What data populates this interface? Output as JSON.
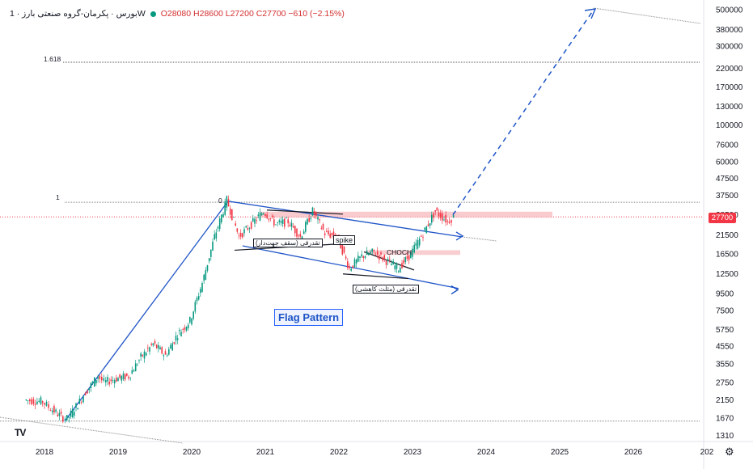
{
  "legend": {
    "symbol": "بورس · پکرمان-گروه صنعتی بارز · 1W",
    "open": "O28080",
    "high": "H28600",
    "low": "L27200",
    "close": "C27700",
    "change": "−610 (−2.15%)",
    "dot_color": "#089981"
  },
  "annotations": {
    "flag": "Flag Pattern",
    "spike": "spike",
    "choch": "CHOCH",
    "note_ascending": "تقدرقی (سقف جهت‌دار)",
    "note_descending": "تقدرقی (مثلث کاهشی)",
    "fib_1618": "1.618",
    "fib_1": "1",
    "fib_0": "0"
  },
  "price_tag": "27700",
  "logo": "TV",
  "settings_icon": "gear-icon",
  "colors": {
    "up": "#089981",
    "down": "#f23645",
    "trend": "#1e54c7",
    "zone": "#f7b9bd"
  },
  "chart_data": {
    "type": "candlestick",
    "x_axis": {
      "labels": [
        "2018",
        "2019",
        "2020",
        "2021",
        "2022",
        "2023",
        "2024",
        "2025",
        "2026",
        "202"
      ]
    },
    "y_axis": {
      "scale": "log",
      "tick_labels": [
        1310,
        1670,
        2150,
        2750,
        3550,
        4550,
        5750,
        7500,
        9500,
        12500,
        16500,
        21500,
        28500,
        37500,
        47500,
        60000,
        76000,
        100000,
        130000,
        170000,
        220000,
        300000,
        380000,
        500000
      ]
    },
    "last_price": 27700,
    "ohlc_last": {
      "open": 28080,
      "high": 28600,
      "low": 27200,
      "close": 27700
    },
    "path_points": [
      [
        "2017-10",
        2150
      ],
      [
        "2018-01",
        2100
      ],
      [
        "2018-02",
        1950
      ],
      [
        "2018-04",
        1700
      ],
      [
        "2018-05",
        1650
      ],
      [
        "2018-07",
        2100
      ],
      [
        "2018-08",
        2400
      ],
      [
        "2018-10",
        3000
      ],
      [
        "2018-11",
        2750
      ],
      [
        "2019-01",
        2900
      ],
      [
        "2019-03",
        3000
      ],
      [
        "2019-05",
        3900
      ],
      [
        "2019-07",
        4700
      ],
      [
        "2019-09",
        4000
      ],
      [
        "2019-11",
        5400
      ],
      [
        "2020-01",
        6500
      ],
      [
        "2020-03",
        11000
      ],
      [
        "2020-05",
        21000
      ],
      [
        "2020-07",
        35000
      ],
      [
        "2020-09",
        21000
      ],
      [
        "2020-11",
        25000
      ],
      [
        "2021-01",
        30000
      ],
      [
        "2021-03",
        25000
      ],
      [
        "2021-05",
        26000
      ],
      [
        "2021-07",
        21000
      ],
      [
        "2021-09",
        30000
      ],
      [
        "2021-11",
        22000
      ],
      [
        "2022-01",
        21000
      ],
      [
        "2022-03",
        13500
      ],
      [
        "2022-05",
        16000
      ],
      [
        "2022-07",
        17000
      ],
      [
        "2022-09",
        15000
      ],
      [
        "2022-11",
        13500
      ],
      [
        "2023-01",
        16500
      ],
      [
        "2023-03",
        22000
      ],
      [
        "2023-05",
        30000
      ],
      [
        "2023-07",
        26000
      ],
      [
        "2023-08",
        27700
      ]
    ],
    "levels": {
      "fib_1618": 240000,
      "fib_1": 34000
    },
    "projection_target": 500000
  }
}
